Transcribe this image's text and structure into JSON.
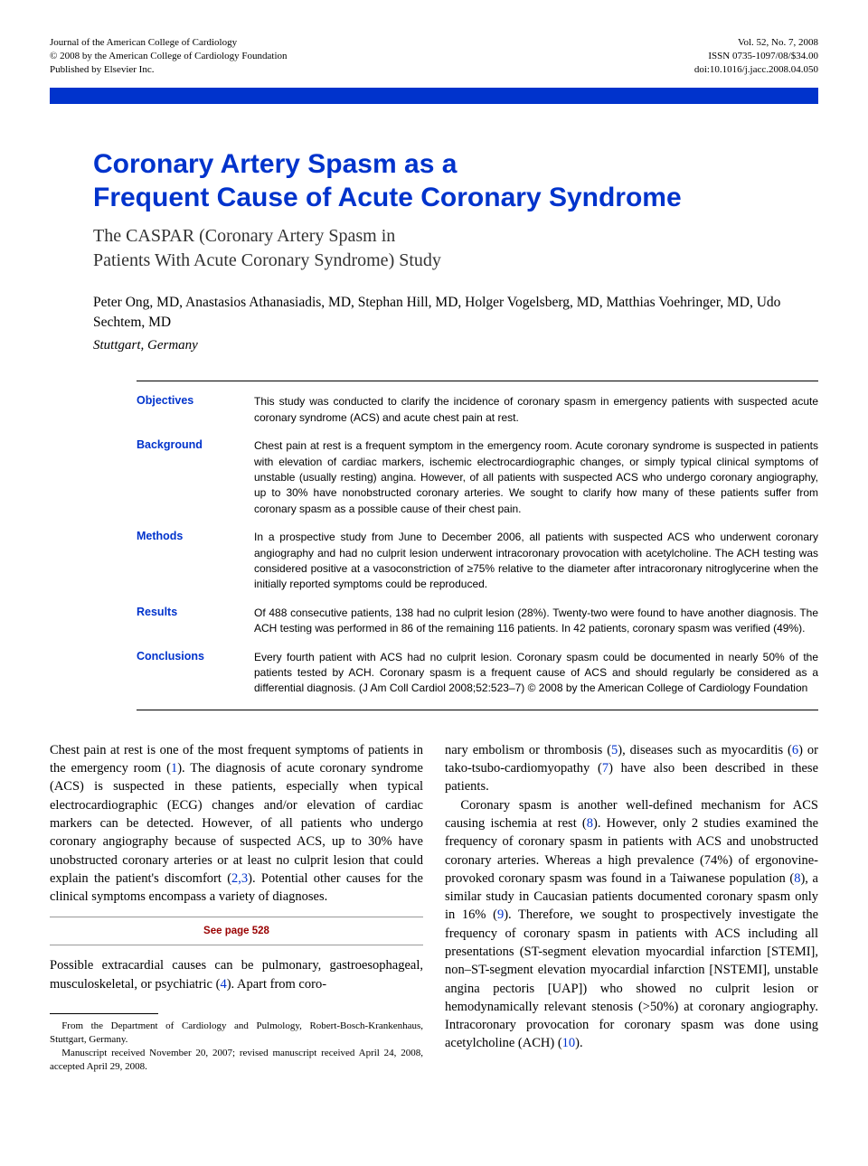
{
  "header": {
    "left_lines": [
      "Journal of the American College of Cardiology",
      "© 2008 by the American College of Cardiology Foundation",
      "Published by Elsevier Inc."
    ],
    "right_lines": [
      "Vol. 52, No. 7, 2008",
      "ISSN 0735-1097/08/$34.00",
      "doi:10.1016/j.jacc.2008.04.050"
    ]
  },
  "colors": {
    "brand_blue": "#0033cc",
    "see_page_red": "#990000",
    "text": "#000000",
    "background": "#ffffff"
  },
  "title_line1": "Coronary Artery Spasm as a",
  "title_line2": "Frequent Cause of Acute Coronary Syndrome",
  "subtitle_line1": "The CASPAR (Coronary Artery Spasm in",
  "subtitle_line2": "Patients With Acute Coronary Syndrome) Study",
  "authors": "Peter Ong, MD, Anastasios Athanasiadis, MD, Stephan Hill, MD, Holger Vogelsberg, MD, Matthias Voehringer, MD, Udo Sechtem, MD",
  "affiliation": "Stuttgart, Germany",
  "abstract": [
    {
      "label": "Objectives",
      "text": "This study was conducted to clarify the incidence of coronary spasm in emergency patients with suspected acute coronary syndrome (ACS) and acute chest pain at rest."
    },
    {
      "label": "Background",
      "text": "Chest pain at rest is a frequent symptom in the emergency room. Acute coronary syndrome is suspected in patients with elevation of cardiac markers, ischemic electrocardiographic changes, or simply typical clinical symptoms of unstable (usually resting) angina. However, of all patients with suspected ACS who undergo coronary angiography, up to 30% have nonobstructed coronary arteries. We sought to clarify how many of these patients suffer from coronary spasm as a possible cause of their chest pain."
    },
    {
      "label": "Methods",
      "text": "In a prospective study from June to December 2006, all patients with suspected ACS who underwent coronary angiography and had no culprit lesion underwent intracoronary provocation with acetylcholine. The ACH testing was considered positive at a vasoconstriction of ≥75% relative to the diameter after intracoronary nitroglycerine when the initially reported symptoms could be reproduced."
    },
    {
      "label": "Results",
      "text": "Of 488 consecutive patients, 138 had no culprit lesion (28%). Twenty-two were found to have another diagnosis. The ACH testing was performed in 86 of the remaining 116 patients. In 42 patients, coronary spasm was verified (49%)."
    },
    {
      "label": "Conclusions",
      "text": "Every fourth patient with ACS had no culprit lesion. Coronary spasm could be documented in nearly 50% of the patients tested by ACH. Coronary spasm is a frequent cause of ACS and should regularly be considered as a differential diagnosis.   (J Am Coll Cardiol 2008;52:523–7) © 2008 by the American College of Cardiology Foundation"
    }
  ],
  "body": {
    "p1a": "Chest pain at rest is one of the most frequent symptoms of patients in the emergency room (",
    "ref1": "1",
    "p1b": "). The diagnosis of acute coronary syndrome (ACS) is suspected in these patients, especially when typical electrocardiographic (ECG) changes and/or elevation of cardiac markers can be detected. However, of all patients who undergo coronary angiography because of suspected ACS, up to 30% have unobstructed coronary arteries or at least no culprit lesion that could explain the patient's discomfort (",
    "ref23": "2,3",
    "p1c": "). Potential other causes for the clinical symptoms encompass a variety of diagnoses.",
    "see_page": "See page 528",
    "p2a": "Possible extracardial causes can be pulmonary, gastroesophageal, musculoskeletal, or psychiatric (",
    "ref4": "4",
    "p2b": "). Apart from coro",
    "p2c": "nary embolism or thrombosis (",
    "ref5": "5",
    "p2d": "), diseases such as myocarditis (",
    "ref6": "6",
    "p2e": ") or tako-tsubo-cardiomyopathy (",
    "ref7": "7",
    "p2f": ") have also been described in these patients.",
    "p3a": "Coronary spasm is another well-defined mechanism for ACS causing ischemia at rest (",
    "ref8a": "8",
    "p3b": "). However, only 2 studies examined the frequency of coronary spasm in patients with ACS and unobstructed coronary arteries. Whereas a high prevalence (74%) of ergonovine-provoked coronary spasm was found in a Taiwanese population (",
    "ref8b": "8",
    "p3c": "), a similar study in Caucasian patients documented coronary spasm only in 16% (",
    "ref9": "9",
    "p3d": "). Therefore, we sought to prospectively investigate the frequency of coronary spasm in patients with ACS including all presentations (ST-segment elevation myocardial infarction [STEMI], non–ST-segment elevation myocardial infarction [NSTEMI], unstable angina pectoris [UAP]) who showed no culprit lesion or hemodynamically relevant stenosis (>50%) at coronary angiography. Intracoronary provocation for coronary spasm was done using acetylcholine (ACH) (",
    "ref10": "10",
    "p3e": ")."
  },
  "footnote": {
    "line1": "From the Department of Cardiology and Pulmology, Robert-Bosch-Krankenhaus, Stuttgart, Germany.",
    "line2": "Manuscript received November 20, 2007; revised manuscript received April 24, 2008, accepted April 29, 2008."
  }
}
